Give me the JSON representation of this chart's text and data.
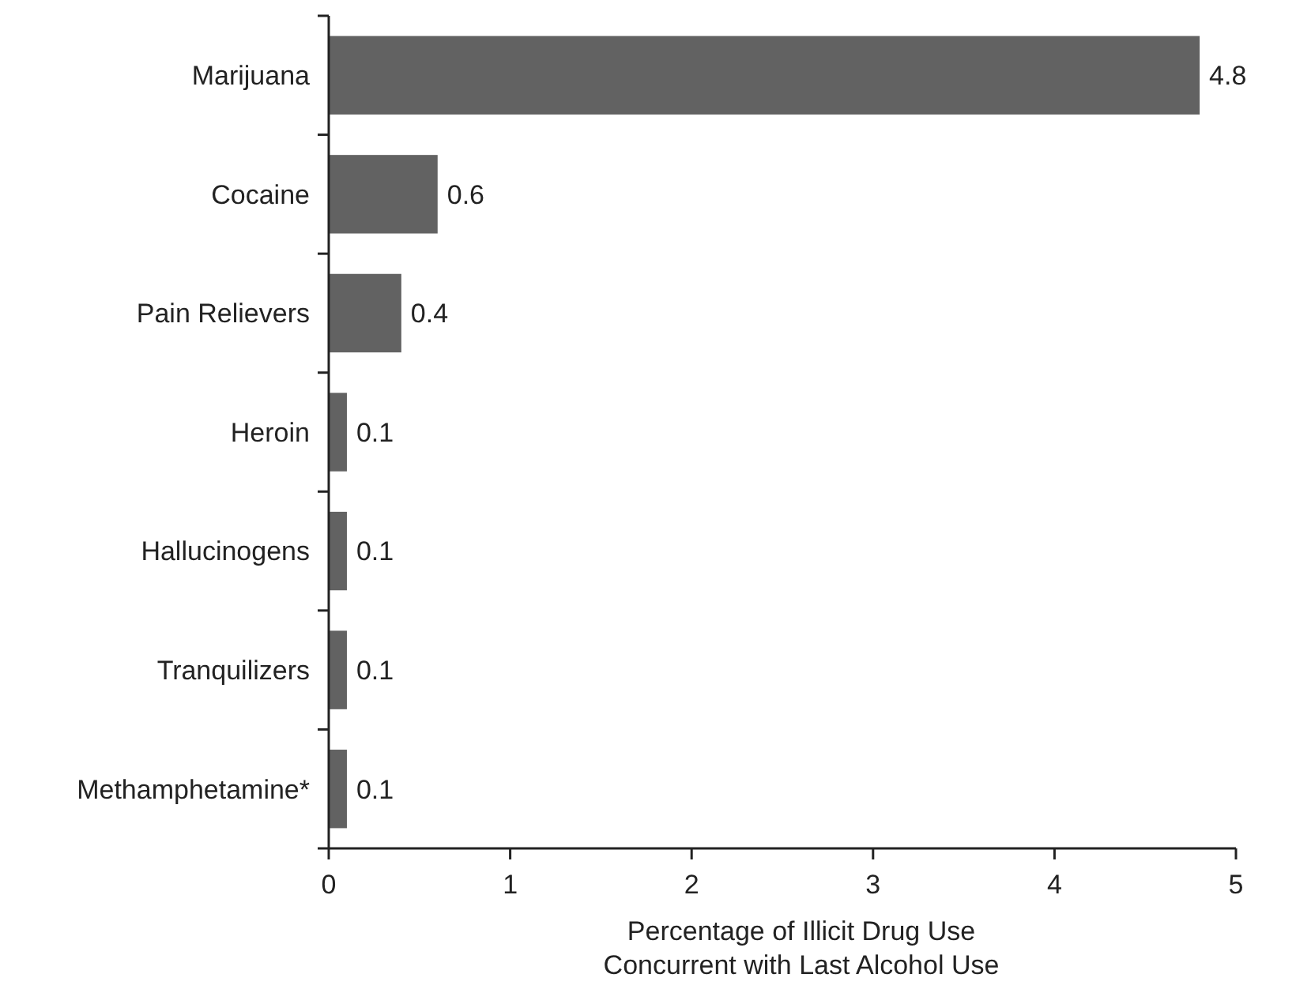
{
  "chart_data": {
    "type": "bar",
    "orientation": "horizontal",
    "categories": [
      "Marijuana",
      "Cocaine",
      "Pain Relievers",
      "Heroin",
      "Hallucinogens",
      "Tranquilizers",
      "Methamphetamine*"
    ],
    "values": [
      4.8,
      0.6,
      0.4,
      0.1,
      0.1,
      0.1,
      0.1
    ],
    "color": "#626262",
    "xlim": [
      0,
      5
    ],
    "xticks": [
      0,
      1,
      2,
      3,
      4,
      5
    ],
    "xlabel": "Percentage of Illicit Drug Use\nConcurrent with Last Alcohol Use",
    "data_labels": true
  }
}
